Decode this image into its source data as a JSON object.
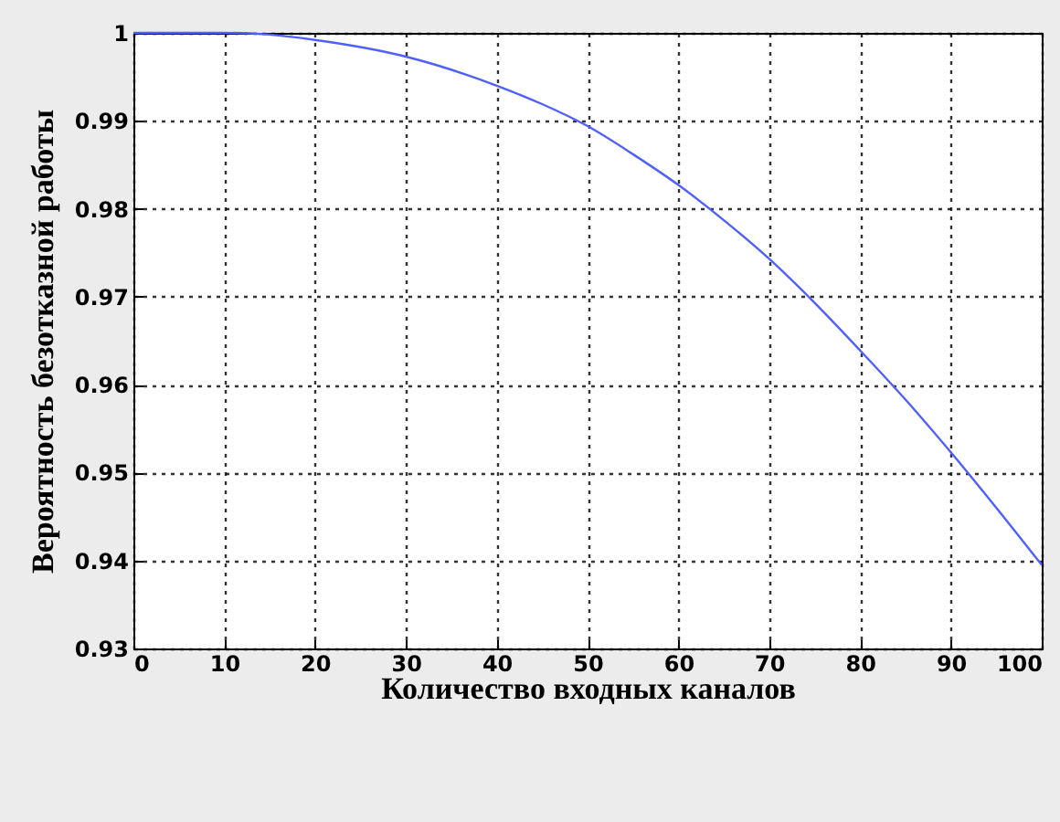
{
  "chart_data": {
    "type": "line",
    "xlabel": "Количество входных каналов",
    "ylabel": "Вероятность безотказной работы",
    "x": [
      0,
      10,
      15,
      20,
      30,
      40,
      45,
      50,
      55,
      60,
      65,
      70,
      75,
      80,
      85,
      90,
      95,
      100
    ],
    "series": [
      {
        "color": "#5060ff",
        "values": [
          1,
          1,
          0.9998,
          0.9992,
          0.9973,
          0.994,
          0.9919,
          0.9894,
          0.9862,
          0.9827,
          0.9787,
          0.9743,
          0.9693,
          0.9639,
          0.9583,
          0.9523,
          0.946,
          0.9395
        ]
      }
    ],
    "xlim": [
      0,
      100
    ],
    "xticks": [
      0,
      10,
      20,
      30,
      40,
      50,
      60,
      70,
      80,
      90,
      100
    ],
    "ylim": [
      0.93,
      1
    ],
    "yticks": [
      0.93,
      0.94,
      0.95,
      0.96,
      0.97,
      0.98,
      0.99,
      1
    ],
    "grid": true,
    "marker": "none",
    "line_style": "solid"
  }
}
